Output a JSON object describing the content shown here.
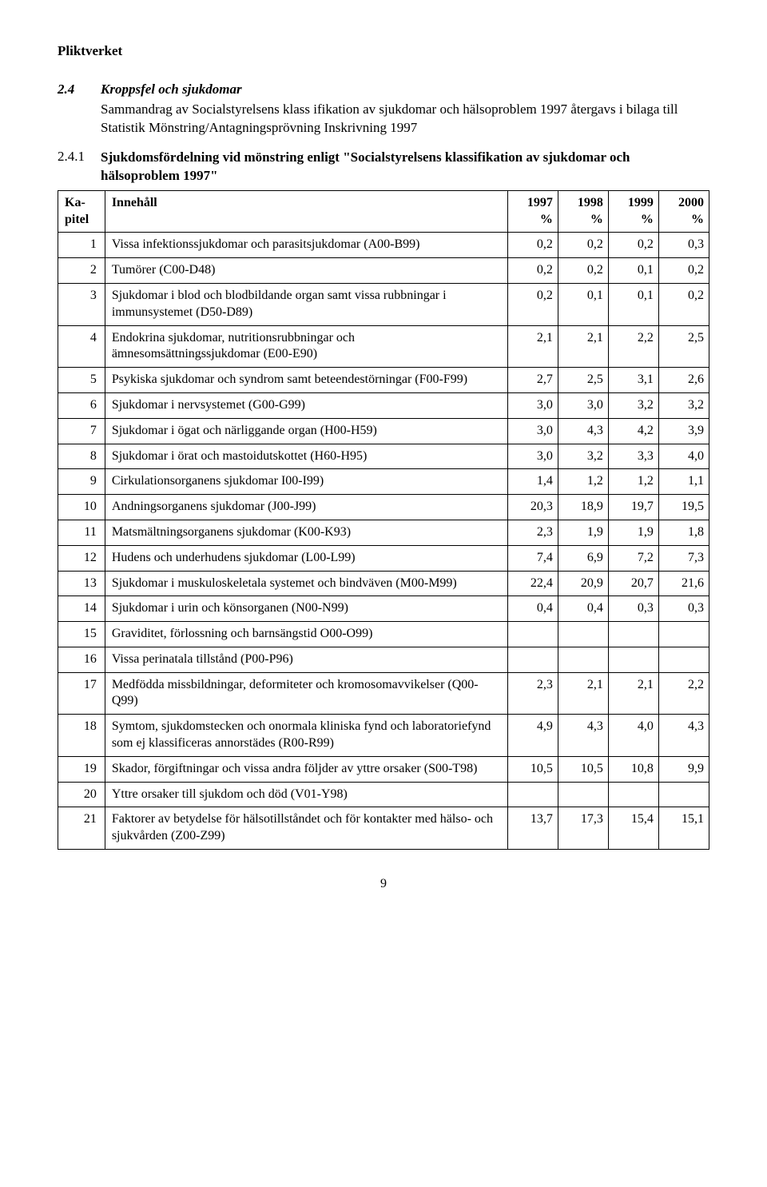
{
  "header": {
    "org": "Pliktverket"
  },
  "section": {
    "num": "2.4",
    "title": "Kroppsfel och sjukdomar",
    "subtitle": "Sammandrag av Socialstyrelsens klass ifikation av sjukdomar och hälsoproblem 1997 återgavs i bilaga till Statistik Mönstring/Antagningsprövning Inskrivning 1997"
  },
  "subsection": {
    "num": "2.4.1",
    "title": "Sjukdomsfördelning vid mönstring enligt \"Socialstyrelsens klassifikation av sjukdomar och hälsoproblem 1997\""
  },
  "table": {
    "columns": {
      "kap": "Ka-pitel",
      "inne": "Innehåll",
      "y1997": "1997 %",
      "y1998": "1998 %",
      "y1999": "1999 %",
      "y2000": "2000 %"
    },
    "col_kap_line1": "Ka-",
    "col_kap_line2": "pitel",
    "col_inne": "Innehåll",
    "y1997_l1": "1997",
    "y1997_l2": "%",
    "y1998_l1": "1998",
    "y1998_l2": "%",
    "y1999_l1": "1999",
    "y1999_l2": "%",
    "y2000_l1": "2000",
    "y2000_l2": "%",
    "rows": [
      {
        "kap": "1",
        "inne": "Vissa infektionssjukdomar och parasitsjukdomar (A00-B99)",
        "v": [
          "0,2",
          "0,2",
          "0,2",
          "0,3"
        ]
      },
      {
        "kap": "2",
        "inne": "Tumörer (C00-D48)",
        "v": [
          "0,2",
          "0,2",
          "0,1",
          "0,2"
        ]
      },
      {
        "kap": "3",
        "inne": "Sjukdomar i blod och blodbildande organ samt vissa rubbningar i immunsystemet (D50-D89)",
        "v": [
          "0,2",
          "0,1",
          "0,1",
          "0,2"
        ]
      },
      {
        "kap": "4",
        "inne": "Endokrina sjukdomar, nutritionsrubbningar och ämnesomsättningssjukdomar (E00-E90)",
        "v": [
          "2,1",
          "2,1",
          "2,2",
          "2,5"
        ]
      },
      {
        "kap": "5",
        "inne": "Psykiska sjukdomar och syndrom samt beteendestörningar (F00-F99)",
        "v": [
          "2,7",
          "2,5",
          "3,1",
          "2,6"
        ]
      },
      {
        "kap": "6",
        "inne": "Sjukdomar i nervsystemet (G00-G99)",
        "v": [
          "3,0",
          "3,0",
          "3,2",
          "3,2"
        ]
      },
      {
        "kap": "7",
        "inne": "Sjukdomar i ögat och närliggande organ (H00-H59)",
        "v": [
          "3,0",
          "4,3",
          "4,2",
          "3,9"
        ]
      },
      {
        "kap": "8",
        "inne": "Sjukdomar i örat och mastoidutskottet (H60-H95)",
        "v": [
          "3,0",
          "3,2",
          "3,3",
          "4,0"
        ]
      },
      {
        "kap": "9",
        "inne": "Cirkulationsorganens sjukdomar I00-I99)",
        "v": [
          "1,4",
          "1,2",
          "1,2",
          "1,1"
        ]
      },
      {
        "kap": "10",
        "inne": "Andningsorganens sjukdomar (J00-J99)",
        "v": [
          "20,3",
          "18,9",
          "19,7",
          "19,5"
        ]
      },
      {
        "kap": "11",
        "inne": "Matsmältningsorganens sjukdomar (K00-K93)",
        "v": [
          "2,3",
          "1,9",
          "1,9",
          "1,8"
        ]
      },
      {
        "kap": "12",
        "inne": "Hudens och underhudens sjukdomar (L00-L99)",
        "v": [
          "7,4",
          "6,9",
          "7,2",
          "7,3"
        ]
      },
      {
        "kap": "13",
        "inne": "Sjukdomar i muskuloskeletala systemet och bindväven (M00-M99)",
        "v": [
          "22,4",
          "20,9",
          "20,7",
          "21,6"
        ]
      },
      {
        "kap": "14",
        "inne": "Sjukdomar i urin och könsorganen (N00-N99)",
        "v": [
          "0,4",
          "0,4",
          "0,3",
          "0,3"
        ]
      },
      {
        "kap": "15",
        "inne": "Graviditet, förlossning och barnsängstid O00-O99)",
        "v": [
          "",
          "",
          "",
          ""
        ]
      },
      {
        "kap": "16",
        "inne": "Vissa perinatala tillstånd (P00-P96)",
        "v": [
          "",
          "",
          "",
          ""
        ]
      },
      {
        "kap": "17",
        "inne": "Medfödda missbildningar, deformiteter och kromosomavvikelser (Q00-Q99)",
        "v": [
          "2,3",
          "2,1",
          "2,1",
          "2,2"
        ]
      },
      {
        "kap": "18",
        "inne": "Symtom, sjukdomstecken och onormala kliniska fynd och laboratoriefynd som ej klassificeras annorstädes (R00-R99)",
        "v": [
          "4,9",
          "4,3",
          "4,0",
          "4,3"
        ]
      },
      {
        "kap": "19",
        "inne": "Skador, förgiftningar och vissa andra följder av yttre orsaker (S00-T98)",
        "v": [
          "10,5",
          "10,5",
          "10,8",
          "9,9"
        ]
      },
      {
        "kap": "20",
        "inne": "Yttre orsaker till sjukdom och död (V01-Y98)",
        "v": [
          "",
          "",
          "",
          ""
        ]
      },
      {
        "kap": "21",
        "inne": "Faktorer av betydelse för hälsotillståndet och för kontakter med hälso- och sjukvården (Z00-Z99)",
        "v": [
          "13,7",
          "17,3",
          "15,4",
          "15,1"
        ]
      }
    ]
  },
  "page_number": "9"
}
